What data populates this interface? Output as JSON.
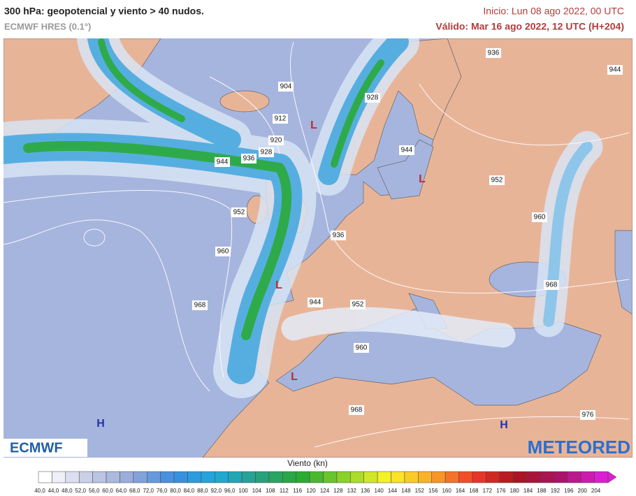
{
  "header": {
    "title": "300 hPa: geopotencial y viento > 40 nudos.",
    "model": "ECMWF HRES (0.1°)",
    "init": "Inicio: Lun 08 ago 2022, 00 UTC",
    "valid": "Válido: Mar 16 ago 2022, 12 UTC (H+204)"
  },
  "map": {
    "isobar_labels": [
      936,
      944,
      904,
      928,
      912,
      920,
      944,
      928,
      936,
      944,
      952,
      952,
      960,
      936,
      960,
      968,
      944,
      952,
      968,
      960,
      968,
      976
    ],
    "pressure_centers": [
      "L",
      "L",
      "L",
      "L",
      "H",
      "H"
    ]
  },
  "logos": {
    "left": "ECMWF",
    "right": "METEORED"
  },
  "colorbar": {
    "title": "Viento (kn)",
    "labels": [
      "40,0",
      "44,0",
      "48,0",
      "52,0",
      "56,0",
      "60,0",
      "64,0",
      "68,0",
      "72,0",
      "76,0",
      "80,0",
      "84,0",
      "88,0",
      "92,0",
      "96,0",
      "100",
      "104",
      "108",
      "112",
      "116",
      "120",
      "124",
      "128",
      "132",
      "136",
      "140",
      "144",
      "148",
      "152",
      "156",
      "160",
      "164",
      "168",
      "172",
      "176",
      "180",
      "184",
      "188",
      "192",
      "196",
      "200",
      "204"
    ]
  }
}
